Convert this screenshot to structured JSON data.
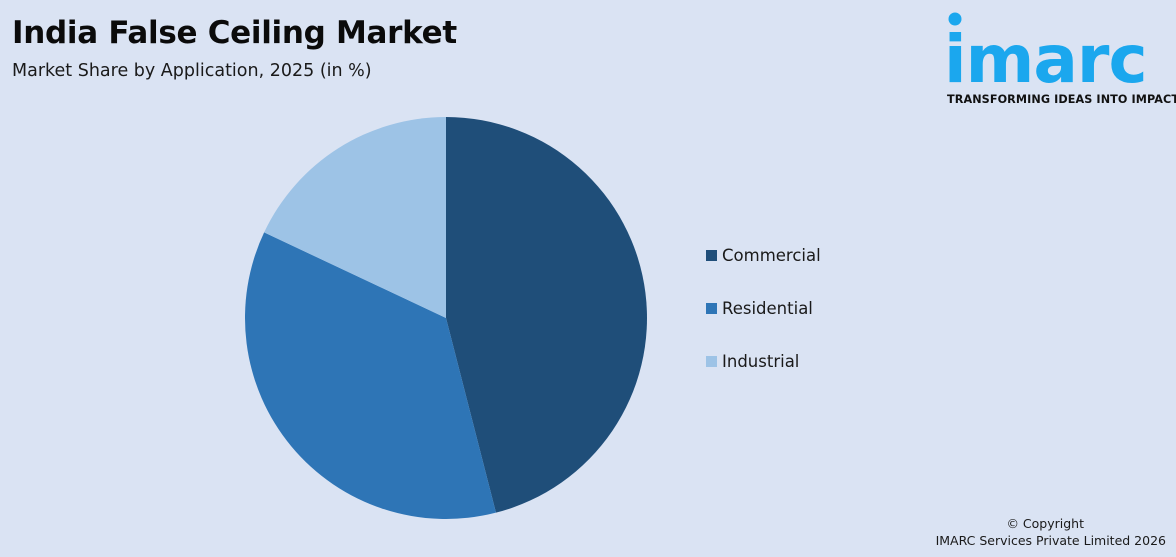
{
  "header": {
    "title": "India False Ceiling Market",
    "subtitle": "Market Share by Application, 2025 (in %)"
  },
  "logo": {
    "wordmark": "imarc",
    "tagline": "TRANSFORMING IDEAS INTO IMPACT",
    "color": "#1ba7ee"
  },
  "legend": {
    "items": [
      {
        "label": "Commercial",
        "color": "#1f4e79"
      },
      {
        "label": "Residential",
        "color": "#2e75b6"
      },
      {
        "label": "Industrial",
        "color": "#9dc3e6"
      }
    ]
  },
  "footer": {
    "copyright": "© Copyright",
    "company": "IMARC Services Private Limited 2026"
  },
  "colors": {
    "background": "#dae3f3",
    "commercial": "#1f4e79",
    "residential": "#2e75b6",
    "industrial": "#9dc3e6"
  },
  "chart_data": {
    "type": "pie",
    "title": "India False Ceiling Market",
    "subtitle": "Market Share by Application, 2025 (in %)",
    "categories": [
      "Commercial",
      "Residential",
      "Industrial"
    ],
    "values": [
      46,
      36,
      18
    ],
    "colors": [
      "#1f4e79",
      "#2e75b6",
      "#9dc3e6"
    ],
    "start_angle": "12 o'clock, clockwise",
    "legend_position": "right",
    "data_labels": false
  }
}
